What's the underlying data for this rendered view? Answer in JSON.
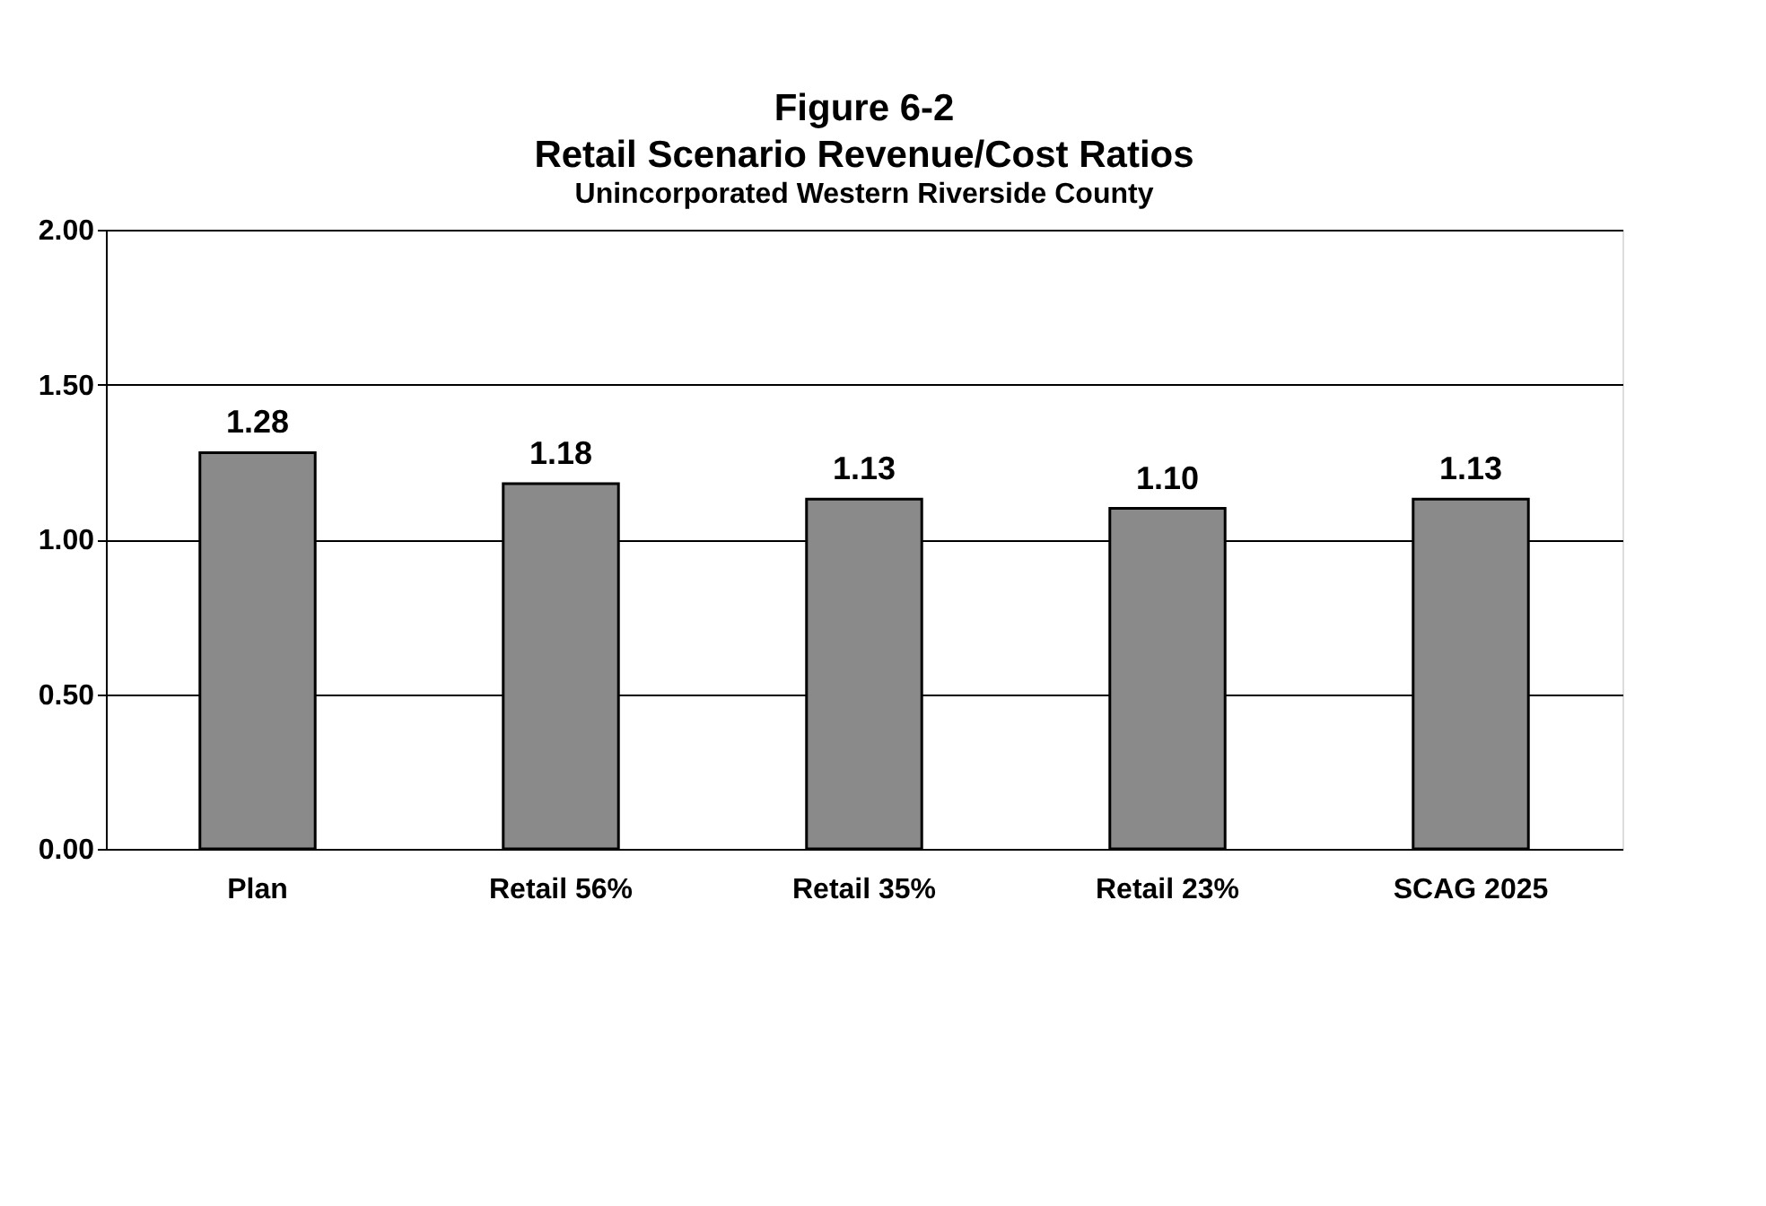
{
  "chart_data": {
    "type": "bar",
    "title": "Figure 6-2\nRetail Scenario Revenue/Cost Ratios",
    "subtitle": "Unincorporated Western Riverside County",
    "categories": [
      "Plan",
      "Retail 56%",
      "Retail 35%",
      "Retail 23%",
      "SCAG 2025"
    ],
    "values": [
      1.28,
      1.18,
      1.13,
      1.1,
      1.13
    ],
    "color": "#8a8a8a",
    "value_labels": [
      "1.28",
      "1.18",
      "1.13",
      "1.10",
      "1.13"
    ],
    "ylim": [
      0,
      2
    ],
    "yticks": [
      {
        "value": 0,
        "label": "0.00"
      },
      {
        "value": 0.5,
        "label": "0.50"
      },
      {
        "value": 1,
        "label": "1.00"
      },
      {
        "value": 1.5,
        "label": "1.50"
      },
      {
        "value": 2,
        "label": "2.00"
      }
    ],
    "grid": "y"
  }
}
